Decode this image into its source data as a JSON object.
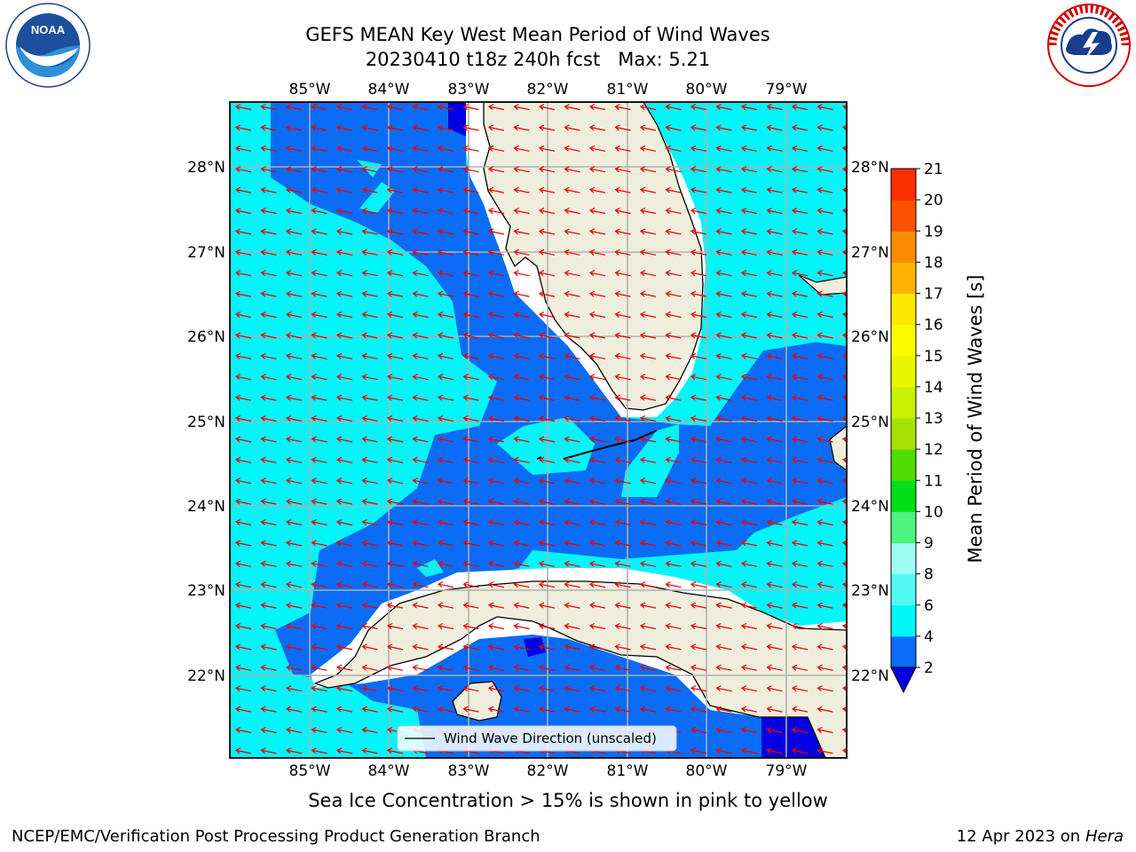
{
  "title_line1": "GEFS MEAN Key West Mean Period of Wind Waves",
  "title_line2": "20230410 t18z 240h fcst",
  "title_max": "Max: 5.21",
  "subtitle": "Sea Ice Concentration > 15% is shown in pink to yellow",
  "footer_left": "NCEP/EMC/Verification Post Processing Product Generation Branch",
  "footer_date": "12 Apr 2023 on",
  "footer_machine": "Hera",
  "legend_label": "Wind Wave Direction (unscaled)",
  "colorbar_label": "Mean Period of Wind Waves [s]",
  "colorbar": {
    "levels": [
      2,
      4,
      6,
      8,
      9,
      10,
      11,
      12,
      13,
      14,
      15,
      16,
      17,
      18,
      19,
      20,
      21
    ],
    "colors": [
      "#0a6cf5",
      "#00f5f8",
      "#52f8f4",
      "#9ffcf4",
      "#4cf37f",
      "#00df19",
      "#4fdd03",
      "#a5e202",
      "#c8f000",
      "#e9f500",
      "#fbfb00",
      "#fbe800",
      "#fbb300",
      "#fb8c00",
      "#fb5200",
      "#fb2e00"
    ],
    "under_color": "#0000e0"
  },
  "chart_data": {
    "type": "map",
    "lon_ticks": [
      "85°W",
      "84°W",
      "83°W",
      "82°W",
      "81°W",
      "80°W",
      "79°W"
    ],
    "lat_ticks": [
      "28°N",
      "27°N",
      "26°N",
      "25°N",
      "24°N",
      "23°N",
      "22°N"
    ],
    "lon_range": [
      -86.0,
      -78.25
    ],
    "lat_range": [
      21.0,
      28.75
    ],
    "max_value": 5.21,
    "field_bins": {
      "dominant_period_s": [
        2,
        6
      ]
    },
    "vector_direction": "westward, slightly south (easterly wind waves)"
  },
  "icons": [
    "noaa-logo",
    "nws-logo"
  ]
}
